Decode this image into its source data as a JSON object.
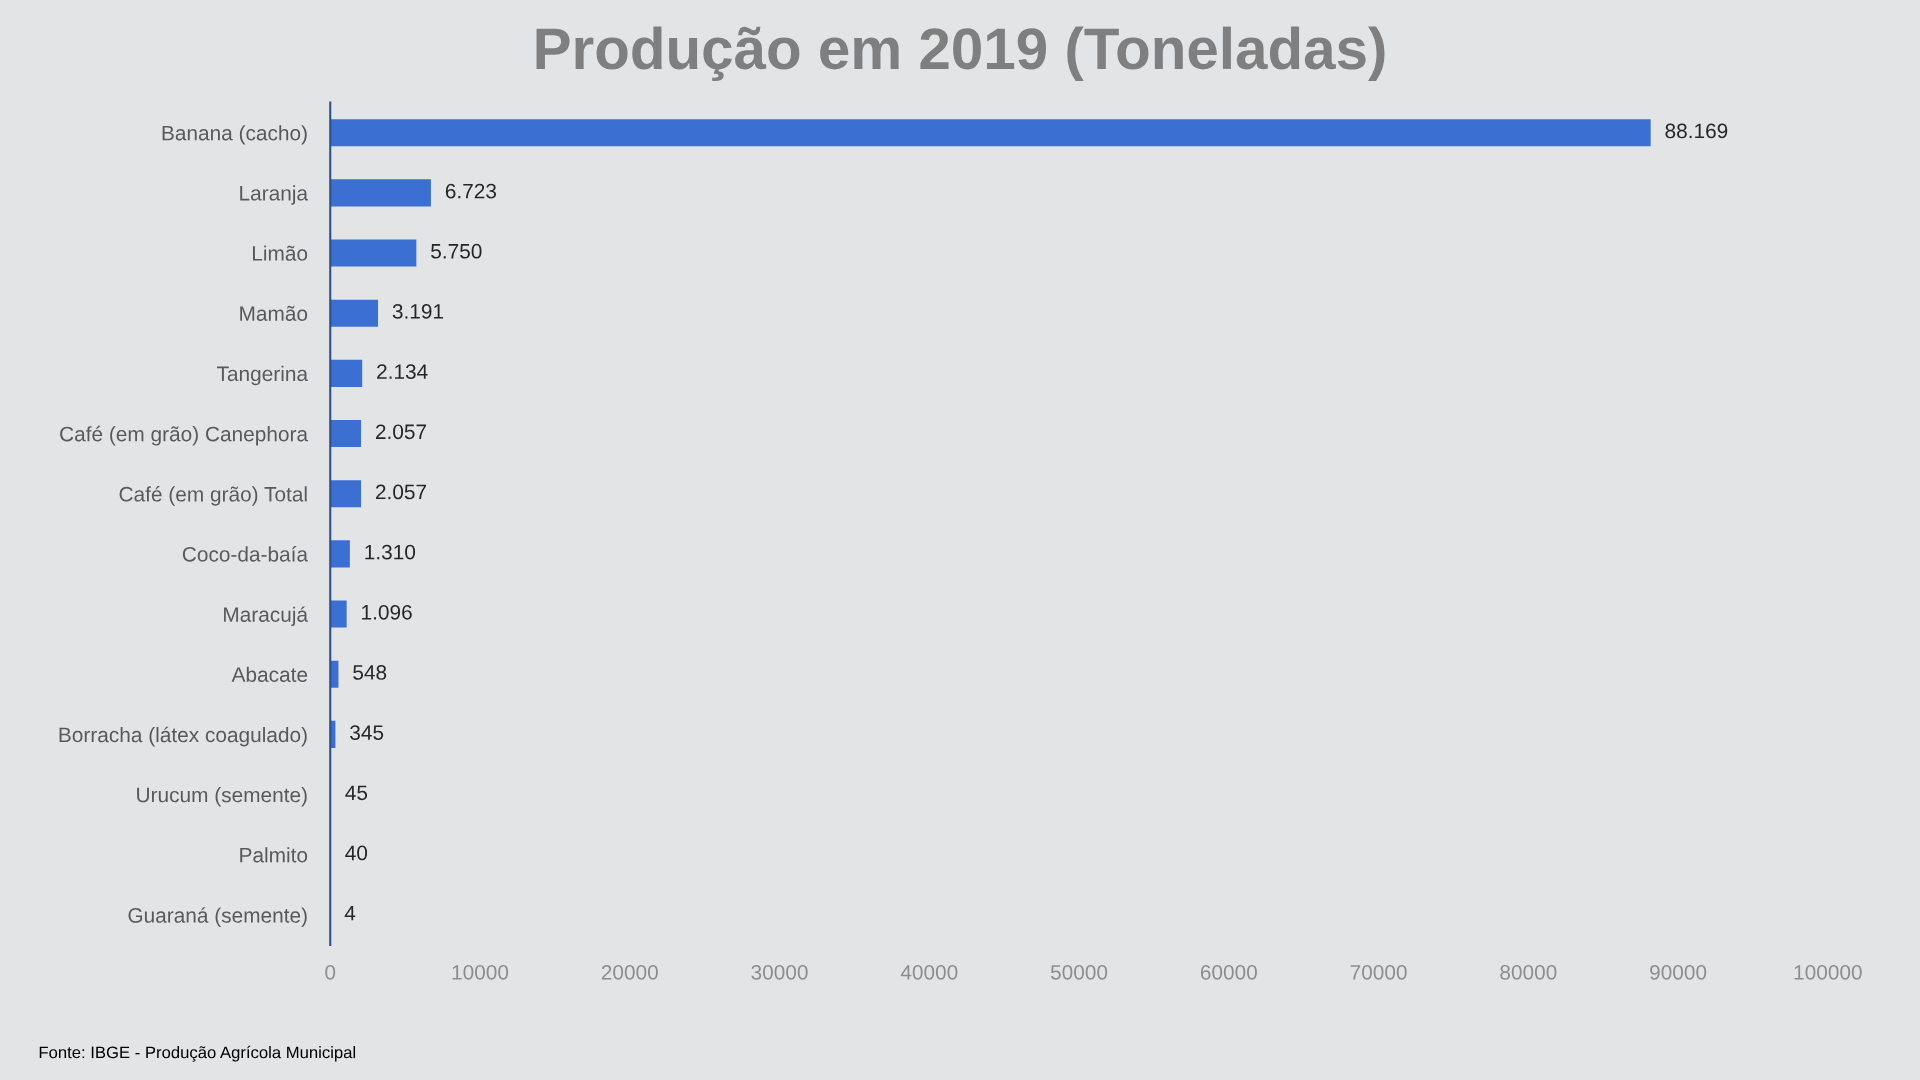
{
  "chart_data": {
    "type": "bar",
    "orientation": "horizontal",
    "title": "Produção em 2019 (Toneladas)",
    "categories": [
      "Banana (cacho)",
      "Laranja",
      "Limão",
      "Mamão",
      "Tangerina",
      "Café (em grão) Canephora",
      "Café (em grão) Total",
      "Coco-da-baía",
      "Maracujá",
      "Abacate",
      "Borracha (látex coagulado)",
      "Urucum (semente)",
      "Palmito",
      "Guaraná (semente)"
    ],
    "values": [
      88169,
      6723,
      5750,
      3191,
      2134,
      2057,
      2057,
      1310,
      1096,
      548,
      345,
      45,
      40,
      4
    ],
    "value_labels": [
      "88.169",
      "6.723",
      "5.750",
      "3.191",
      "2.134",
      "2.057",
      "2.057",
      "1.310",
      "1.096",
      "548",
      "345",
      "45",
      "40",
      "4"
    ],
    "color": "#3b6fd2",
    "xlim": [
      0,
      100000
    ],
    "xticks": [
      0,
      10000,
      20000,
      30000,
      40000,
      50000,
      60000,
      70000,
      80000,
      90000,
      100000
    ],
    "grid": false,
    "legend": false,
    "annotations": [
      "Fonte: IBGE - Produção Agrícola Municipal"
    ]
  }
}
